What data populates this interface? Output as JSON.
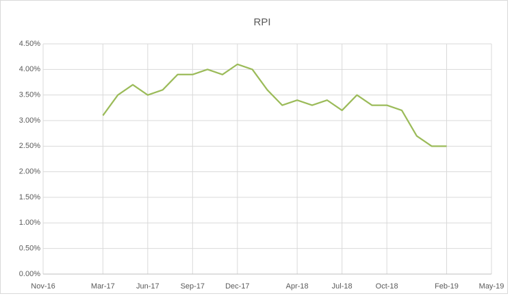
{
  "chart_data": {
    "type": "line",
    "title": "RPI",
    "x": [
      "Mar-17",
      "Apr-17",
      "May-17",
      "Jun-17",
      "Jul-17",
      "Aug-17",
      "Sep-17",
      "Oct-17",
      "Nov-17",
      "Dec-17",
      "Jan-18",
      "Feb-18",
      "Mar-18",
      "Apr-18",
      "May-18",
      "Jun-18",
      "Jul-18",
      "Aug-18",
      "Sep-18",
      "Oct-18",
      "Nov-18",
      "Dec-18",
      "Jan-19",
      "Feb-19"
    ],
    "series": [
      {
        "name": "RPI",
        "color": "#9bbb59",
        "values": [
          3.1,
          3.5,
          3.7,
          3.5,
          3.6,
          3.9,
          3.9,
          4.0,
          3.9,
          4.1,
          4.0,
          3.6,
          3.3,
          3.4,
          3.3,
          3.4,
          3.2,
          3.5,
          3.3,
          3.3,
          3.2,
          2.7,
          2.5,
          2.5
        ]
      }
    ],
    "xlim": [
      "Nov-16",
      "May-19"
    ],
    "xticks": [
      "Nov-16",
      "Mar-17",
      "Jun-17",
      "Sep-17",
      "Dec-17",
      "Apr-18",
      "Jul-18",
      "Oct-18",
      "Feb-19",
      "May-19"
    ],
    "ylim": [
      0,
      4.5
    ],
    "yticks": [
      {
        "value": 0,
        "label": "0.00%"
      },
      {
        "value": 0.5,
        "label": "0.50%"
      },
      {
        "value": 1,
        "label": "1.00%"
      },
      {
        "value": 1.5,
        "label": "1.50%"
      },
      {
        "value": 2,
        "label": "2.00%"
      },
      {
        "value": 2.5,
        "label": "2.50%"
      },
      {
        "value": 3,
        "label": "3.00%"
      },
      {
        "value": 3.5,
        "label": "3.50%"
      },
      {
        "value": 4,
        "label": "4.00%"
      },
      {
        "value": 4.5,
        "label": "4.50%"
      }
    ],
    "grid": true
  }
}
